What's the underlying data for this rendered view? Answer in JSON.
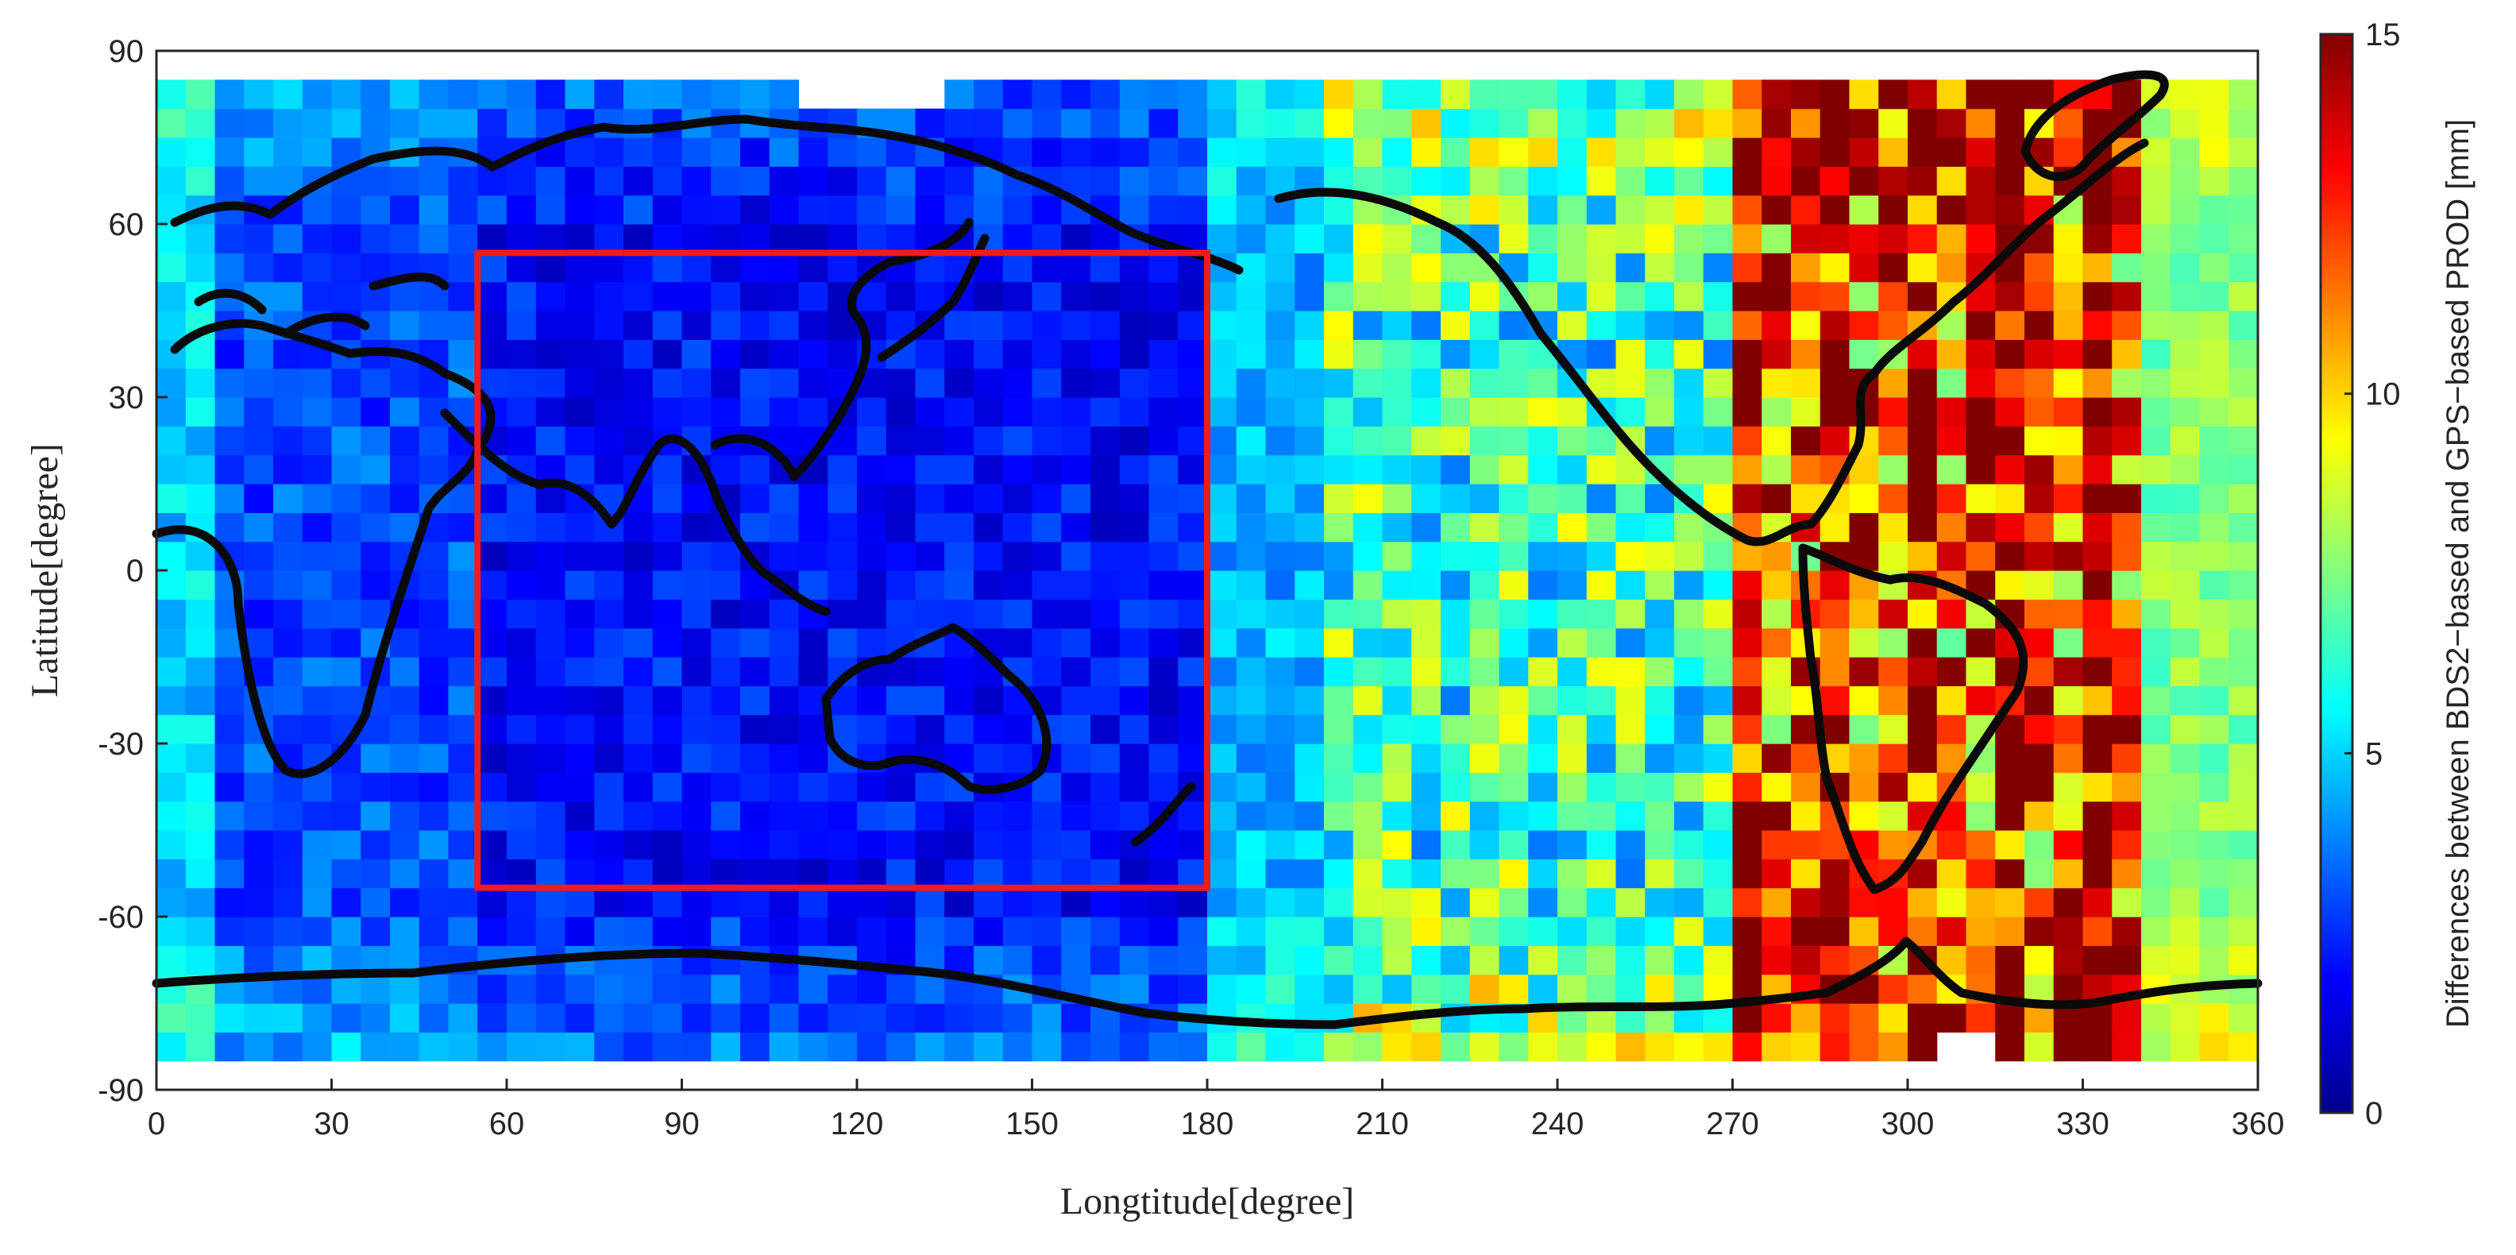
{
  "chart_data": {
    "type": "heatmap",
    "title": "",
    "xlabel": "Longtitude[degree]",
    "ylabel": "Latitude[degree]",
    "colorbar_label": "Differences between BDS2−based and GPS−based PROD [mm]",
    "colormap": "jet",
    "xlim": [
      0,
      360
    ],
    "ylim": [
      -90,
      90
    ],
    "clim": [
      0,
      15
    ],
    "cell_size_degrees": 5,
    "data_extent_latitude": [
      -85,
      85
    ],
    "grid": false,
    "overlay": "coastlines (black)",
    "x_ticks": [
      "0",
      "30",
      "60",
      "90",
      "120",
      "150",
      "180",
      "210",
      "240",
      "270",
      "300",
      "330",
      "360"
    ],
    "y_ticks": [
      "90",
      "60",
      "30",
      "0",
      "-30",
      "-60",
      "-90"
    ],
    "colorbar_ticks": [
      "15",
      "10",
      "5",
      "0"
    ],
    "colorbar_tick_values": [
      15,
      10,
      5,
      0
    ],
    "highlight_box": {
      "color": "#ee1c1c",
      "lon_range": [
        55,
        180
      ],
      "lat_range": [
        -55,
        55
      ]
    },
    "value_pattern_mm": {
      "lon_0_10": 5.0,
      "lon_10_55": 3.0,
      "lon_55_180": 2.0,
      "lon_180_200": 4.5,
      "lon_200_270": 6.5,
      "lon_270_340": 11.5,
      "lon_340_360": 7.5,
      "high_latitude_increase": 1.5
    }
  }
}
